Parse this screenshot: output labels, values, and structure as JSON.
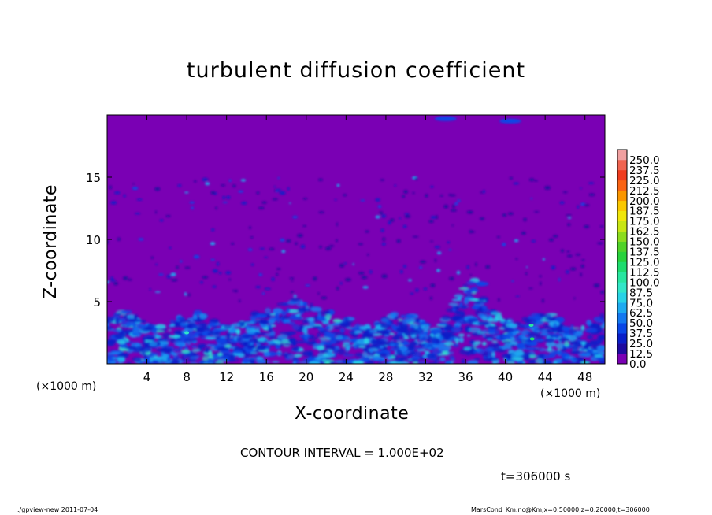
{
  "chart_data": {
    "type": "heatmap",
    "title": "turbulent diffusion coefficient",
    "xlabel": "X-coordinate",
    "ylabel": "Z-coordinate",
    "x_unit": "(×1000 m)",
    "xlim": [
      0,
      50
    ],
    "ylim": [
      0,
      20
    ],
    "x_ticks": [
      4,
      8,
      12,
      16,
      20,
      24,
      28,
      32,
      36,
      40,
      44,
      48
    ],
    "y_ticks": [
      5,
      10,
      15
    ],
    "colorbar": {
      "levels": [
        "0.0",
        "12.5",
        "25.0",
        "37.5",
        "50.0",
        "62.5",
        "75.0",
        "87.5",
        "100.0",
        "112.5",
        "125.0",
        "137.5",
        "150.0",
        "162.5",
        "175.0",
        "187.5",
        "200.0",
        "212.5",
        "225.0",
        "237.5",
        "250.0"
      ],
      "colors": [
        "#7a00b4",
        "#1e0aa0",
        "#0a1ec8",
        "#0a46e6",
        "#1478f0",
        "#1eaaf0",
        "#28d2e6",
        "#32e6c8",
        "#28e6a0",
        "#1edc6e",
        "#28d23c",
        "#50d228",
        "#8cdc1e",
        "#c8e614",
        "#f0e60a",
        "#fac800",
        "#fa9600",
        "#fa6414",
        "#f03c1e",
        "#f06450",
        "#f0a0a0"
      ]
    },
    "field_background": "#7a00b4",
    "contour_interval": "CONTOUR INTERVAL = 1.000E+02",
    "time": "t=306000 s"
  },
  "footer": {
    "left": "./gpview-new   2011-07-04",
    "right": "MarsCond_Km.nc@Km,x=0:50000,z=0:20000,t=306000"
  }
}
